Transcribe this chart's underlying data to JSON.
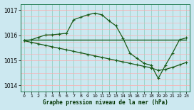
{
  "title": "Graphe pression niveau de la mer (hPa)",
  "bg_color": "#cce8f0",
  "grid_color_v": "#88ccbb",
  "grid_color_h": "#ffaaaa",
  "line_color": "#1a5c1a",
  "xlim": [
    -0.5,
    23.5
  ],
  "ylim": [
    1013.75,
    1017.25
  ],
  "yticks": [
    1014,
    1015,
    1016,
    1017
  ],
  "xticks": [
    0,
    1,
    2,
    3,
    4,
    5,
    6,
    7,
    8,
    9,
    10,
    11,
    12,
    13,
    14,
    15,
    16,
    17,
    18,
    19,
    20,
    21,
    22,
    23
  ],
  "line1_x": [
    0,
    1,
    2,
    3,
    4,
    5,
    6,
    7,
    8,
    9,
    10,
    11,
    12,
    13,
    14,
    15,
    16,
    17,
    18,
    19,
    20,
    21,
    22,
    23
  ],
  "line1_y": [
    1015.78,
    1015.82,
    1015.92,
    1016.01,
    1016.02,
    1016.05,
    1016.08,
    1016.62,
    1016.72,
    1016.82,
    1016.88,
    1016.82,
    1016.58,
    1016.38,
    1015.88,
    1015.28,
    1015.08,
    1014.88,
    1014.8,
    1014.28,
    1014.8,
    1015.28,
    1015.82,
    1015.9
  ],
  "line2_x": [
    0,
    23
  ],
  "line2_y": [
    1015.82,
    1015.82
  ],
  "line3_x": [
    0,
    1,
    2,
    3,
    4,
    5,
    6,
    7,
    8,
    9,
    10,
    11,
    12,
    13,
    14,
    15,
    16,
    17,
    18,
    19,
    20,
    21,
    22,
    23
  ],
  "line3_y": [
    1015.78,
    1015.72,
    1015.66,
    1015.6,
    1015.54,
    1015.48,
    1015.42,
    1015.36,
    1015.3,
    1015.24,
    1015.18,
    1015.12,
    1015.06,
    1015.0,
    1014.94,
    1014.88,
    1014.82,
    1014.76,
    1014.7,
    1014.6,
    1014.64,
    1014.72,
    1014.82,
    1014.92
  ]
}
